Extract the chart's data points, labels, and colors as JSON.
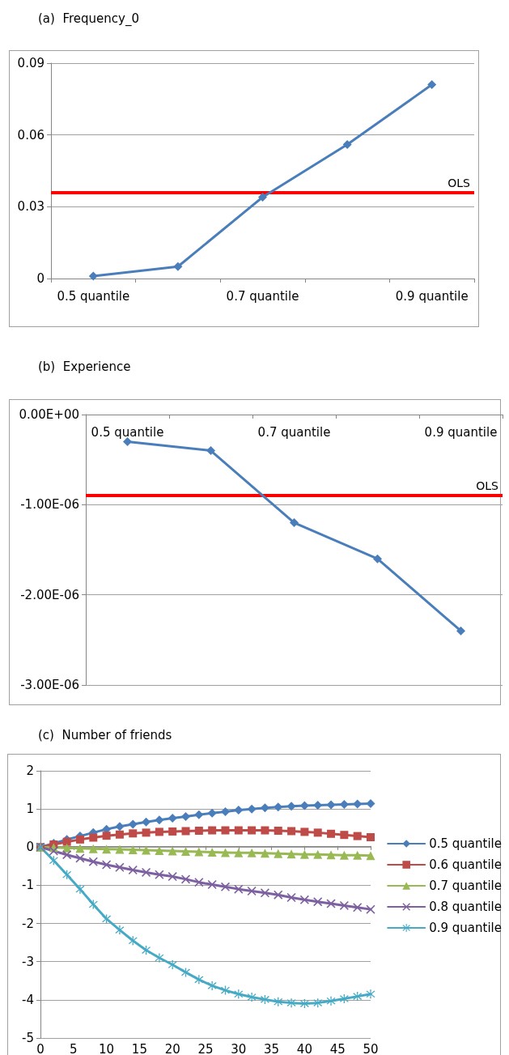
{
  "chart_data": [
    {
      "type": "line",
      "title": "(a)  Frequency_0",
      "categories": [
        "0.5 quantile",
        null,
        "0.7 quantile",
        null,
        "0.9 quantile"
      ],
      "series": [
        {
          "color": "#4a7ebb",
          "values": [
            0.001,
            0.005,
            0.034,
            0.056,
            0.081
          ]
        }
      ],
      "ylim": [
        0,
        0.09
      ],
      "yticks": [
        0,
        0.03,
        0.06,
        0.09
      ],
      "grid": "y",
      "marker": "diamond",
      "legend": false,
      "ref_lines": [
        {
          "axis": "y",
          "value": 0.036,
          "label": "OLS",
          "color": "#ff0000"
        }
      ]
    },
    {
      "type": "line",
      "title": "(b)  Experience",
      "categories": [
        "0.5 quantile",
        null,
        "0.7 quantile",
        null,
        "0.9 quantile"
      ],
      "series": [
        {
          "color": "#4a7ebb",
          "values": [
            -3e-07,
            -4e-07,
            -1.2e-06,
            -1.6e-06,
            -2.4e-06
          ]
        }
      ],
      "ylim": [
        -3e-06,
        0
      ],
      "yticks": [
        {
          "value": -3e-06,
          "label": "-3.00E-06"
        },
        {
          "value": -2e-06,
          "label": "-2.00E-06"
        },
        {
          "value": -1e-06,
          "label": "-1.00E-06"
        },
        {
          "value": 0,
          "label": "0.00E+00"
        }
      ],
      "grid": "y",
      "marker": "diamond",
      "legend": false,
      "ref_lines": [
        {
          "axis": "y",
          "value": -9e-07,
          "label": "OLS",
          "color": "#ff0000"
        }
      ]
    },
    {
      "type": "line",
      "title": "(c)  Number of friends",
      "x": [
        0,
        2,
        4,
        6,
        8,
        10,
        12,
        14,
        16,
        18,
        20,
        22,
        24,
        26,
        28,
        30,
        32,
        34,
        36,
        38,
        40,
        42,
        44,
        46,
        48,
        50
      ],
      "series": [
        {
          "name": "0.5 quantile",
          "color": "#4a7ebb",
          "marker": "diamond",
          "values": [
            0,
            0.1,
            0.2,
            0.29,
            0.38,
            0.47,
            0.54,
            0.6,
            0.66,
            0.71,
            0.76,
            0.8,
            0.85,
            0.89,
            0.93,
            0.97,
            1.0,
            1.03,
            1.05,
            1.07,
            1.09,
            1.1,
            1.11,
            1.12,
            1.13,
            1.14
          ]
        },
        {
          "name": "0.6 quantile",
          "color": "#be4b48",
          "marker": "square",
          "values": [
            0,
            0.07,
            0.14,
            0.2,
            0.25,
            0.3,
            0.33,
            0.36,
            0.38,
            0.4,
            0.41,
            0.42,
            0.43,
            0.44,
            0.44,
            0.44,
            0.44,
            0.44,
            0.43,
            0.42,
            0.4,
            0.38,
            0.35,
            0.32,
            0.29,
            0.26
          ]
        },
        {
          "name": "0.7 quantile",
          "color": "#98b954",
          "marker": "triangle",
          "values": [
            0,
            -0.01,
            -0.02,
            -0.03,
            -0.04,
            -0.05,
            -0.06,
            -0.07,
            -0.08,
            -0.09,
            -0.1,
            -0.11,
            -0.12,
            -0.13,
            -0.14,
            -0.15,
            -0.15,
            -0.16,
            -0.17,
            -0.18,
            -0.19,
            -0.19,
            -0.2,
            -0.21,
            -0.21,
            -0.22
          ]
        },
        {
          "name": "0.8 quantile",
          "color": "#7d60a0",
          "marker": "cross",
          "values": [
            0,
            -0.1,
            -0.2,
            -0.29,
            -0.38,
            -0.46,
            -0.53,
            -0.6,
            -0.66,
            -0.72,
            -0.77,
            -0.84,
            -0.92,
            -0.98,
            -1.04,
            -1.1,
            -1.15,
            -1.2,
            -1.25,
            -1.32,
            -1.38,
            -1.43,
            -1.48,
            -1.53,
            -1.58,
            -1.63
          ]
        },
        {
          "name": "0.9 quantile",
          "color": "#46aac5",
          "marker": "star",
          "values": [
            0,
            -0.35,
            -0.72,
            -1.1,
            -1.5,
            -1.88,
            -2.17,
            -2.45,
            -2.7,
            -2.9,
            -3.08,
            -3.28,
            -3.47,
            -3.63,
            -3.75,
            -3.85,
            -3.93,
            -3.99,
            -4.05,
            -4.08,
            -4.1,
            -4.08,
            -4.03,
            -3.97,
            -3.91,
            -3.85
          ]
        }
      ],
      "xlim": [
        0,
        50
      ],
      "xticks": [
        0,
        5,
        10,
        15,
        20,
        25,
        30,
        35,
        40,
        45,
        50
      ],
      "ylim": [
        -5,
        2
      ],
      "yticks": [
        -5,
        -4,
        -3,
        -2,
        -1,
        0,
        1,
        2
      ],
      "grid": "y",
      "legend": "right"
    }
  ]
}
